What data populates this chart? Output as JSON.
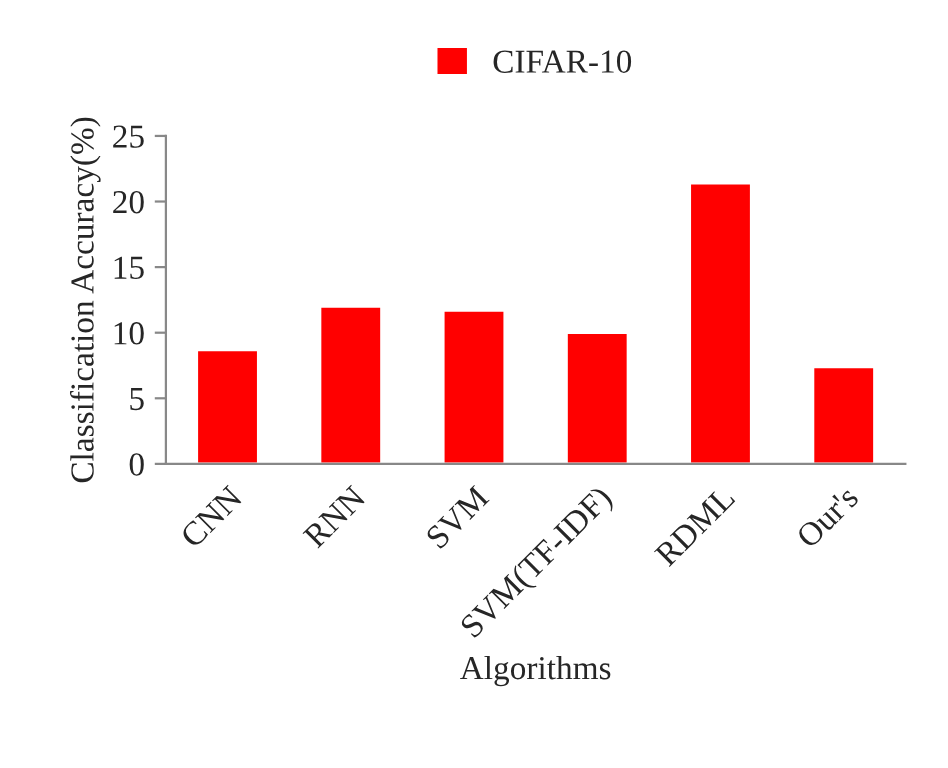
{
  "chart_data": {
    "type": "bar",
    "categories": [
      "CNN",
      "RNN",
      "SVM",
      "SVM(TF-IDF)",
      "RDML",
      "Our's"
    ],
    "series": [
      {
        "name": "CIFAR-10",
        "color": "#ff0000",
        "values": [
          8.7,
          12.0,
          11.7,
          10.0,
          21.4,
          7.4
        ]
      }
    ],
    "xlabel": "Algorithms",
    "ylabel": "Classification Accuracy(%)",
    "ylim": [
      0,
      25
    ],
    "yticks": [
      0,
      5,
      10,
      15,
      20,
      25
    ],
    "grid": false,
    "legend": "top"
  }
}
